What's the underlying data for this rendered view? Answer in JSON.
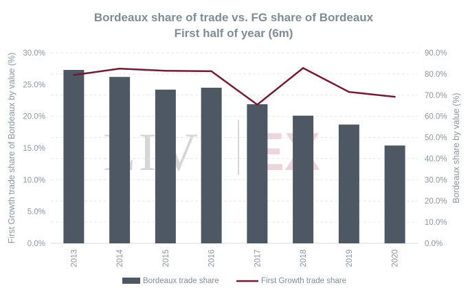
{
  "chart_data": {
    "type": "bar",
    "title": "Bordeaux share of trade vs. FG share of Bordeaux",
    "subtitle": "First half of year (6m)",
    "categories": [
      "2013",
      "2014",
      "2015",
      "2016",
      "2017",
      "2018",
      "2019",
      "2020"
    ],
    "series": [
      {
        "name": "Bordeaux trade share",
        "type": "bar",
        "axis": "left",
        "color": "#4d5863",
        "values": [
          27.3,
          26.2,
          24.2,
          24.5,
          21.9,
          20.1,
          18.7,
          15.4
        ]
      },
      {
        "name": "First Growth trade share",
        "type": "line",
        "axis": "right",
        "color": "#7a1630",
        "values": [
          79.5,
          82.5,
          81.5,
          81.3,
          65.5,
          82.8,
          71.5,
          69.2
        ]
      }
    ],
    "y_left": {
      "label": "First Growth trade share of Bordeaux by value (%)",
      "min": 0,
      "max": 30,
      "step": 5,
      "tick_labels": [
        "0.0%",
        "5.0%",
        "10.0%",
        "15.0%",
        "20.0%",
        "25.0%",
        "30.0%"
      ]
    },
    "y_right": {
      "label": "Bordeaux share by value (%)",
      "min": 0,
      "max": 90,
      "step": 10,
      "tick_labels": [
        "0.0%",
        "10.0%",
        "20.0%",
        "30.0%",
        "40.0%",
        "50.0%",
        "60.0%",
        "70.0%",
        "80.0%",
        "90.0%"
      ]
    },
    "grid": true,
    "legend_position": "bottom",
    "watermark": {
      "left": "LIV",
      "right": "EX"
    }
  }
}
